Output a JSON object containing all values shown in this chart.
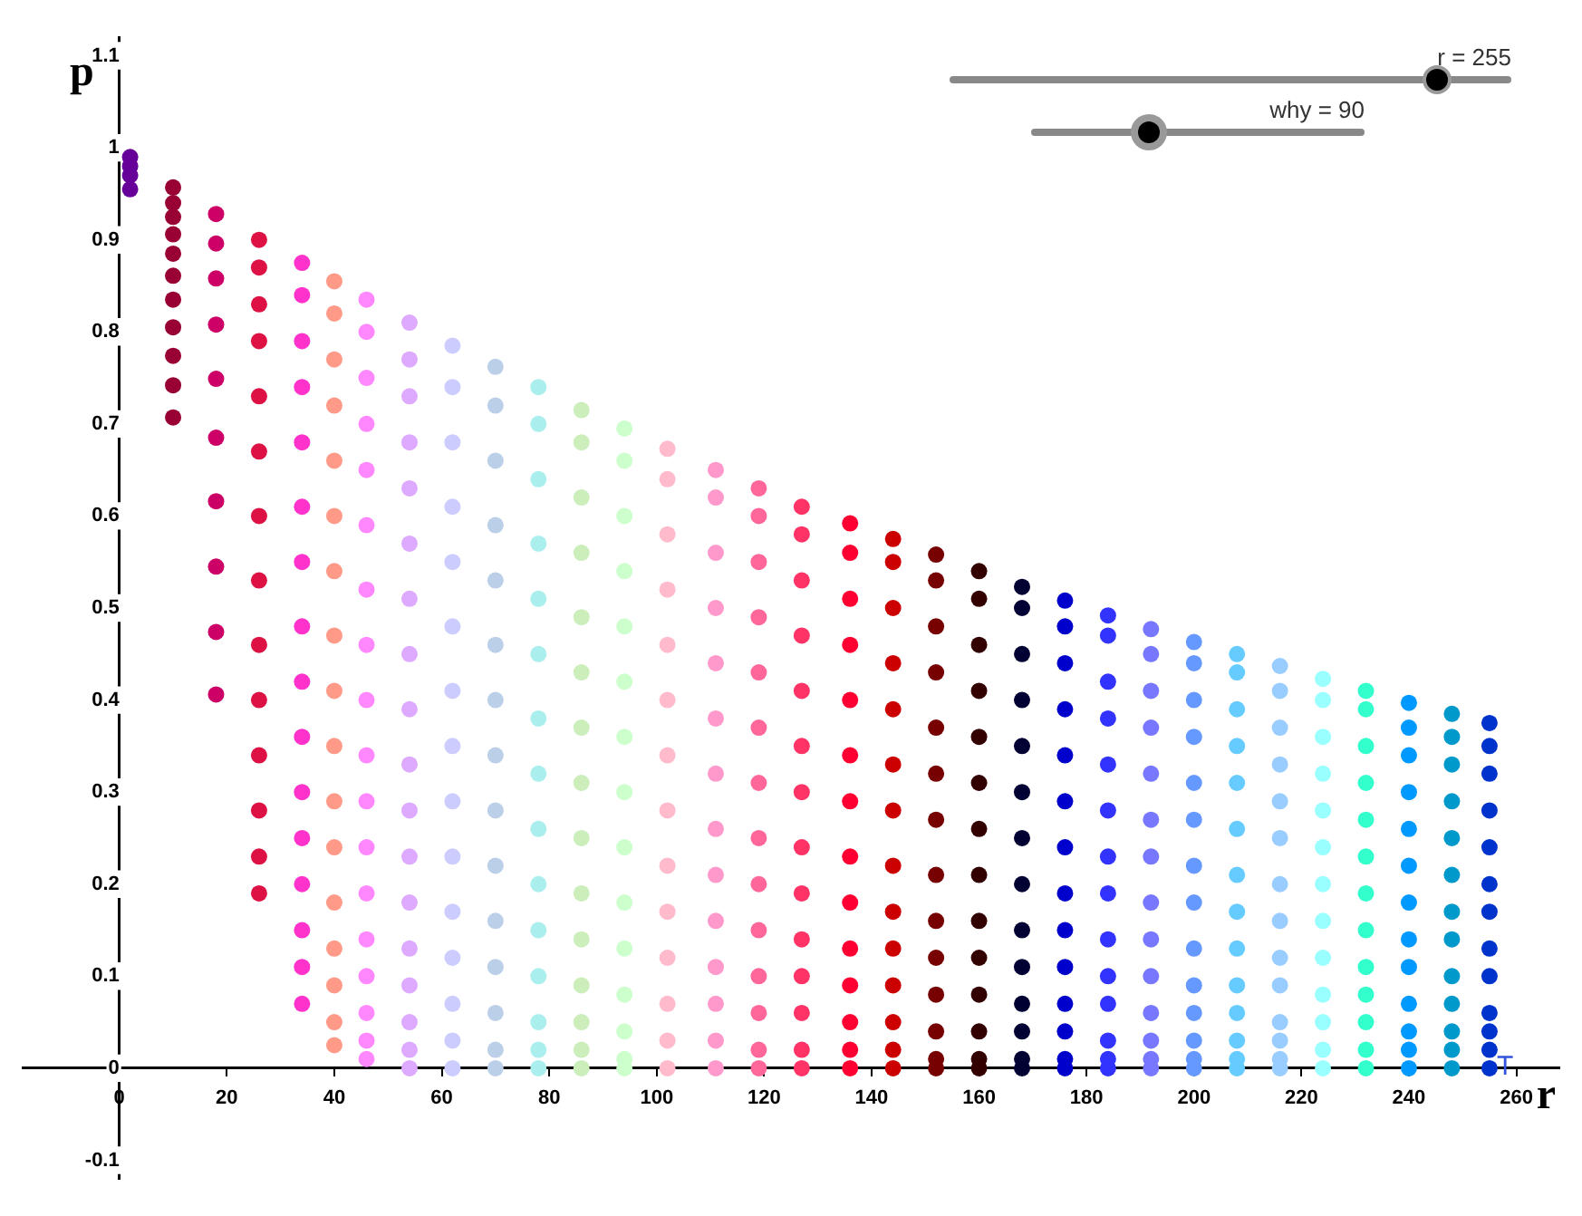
{
  "chart_data": {
    "type": "scatter",
    "xlabel": "r",
    "ylabel": "p",
    "xlim": [
      -18,
      268
    ],
    "ylim": [
      -0.12,
      1.12
    ],
    "xticks": [
      0,
      20,
      40,
      60,
      80,
      100,
      120,
      140,
      160,
      180,
      200,
      220,
      240,
      260
    ],
    "yticks": [
      -0.1,
      0,
      0.1,
      0.2,
      0.3,
      0.4,
      0.5,
      0.6,
      0.7,
      0.8,
      0.9,
      1,
      1.1
    ],
    "grid": false,
    "legend": false,
    "marker": "circle",
    "annotations": [
      "r = 255",
      "why = 90",
      "T"
    ],
    "series": [
      {
        "color": "#660099",
        "x": [
          2,
          2,
          2,
          2
        ],
        "values": [
          0.99,
          0.98,
          0.97,
          0.955
        ]
      },
      {
        "color": "#990033",
        "x": [
          10,
          10,
          10,
          10,
          10,
          10,
          10,
          10,
          10,
          10,
          10
        ],
        "values": [
          0.957,
          0.94,
          0.925,
          0.906,
          0.885,
          0.861,
          0.835,
          0.805,
          0.774,
          0.742,
          0.707
        ]
      },
      {
        "color": "#cc0066",
        "x": [
          18,
          18,
          18,
          18,
          18,
          18,
          18,
          18,
          18,
          18
        ],
        "values": [
          0.928,
          0.896,
          0.858,
          0.808,
          0.749,
          0.685,
          0.616,
          0.545,
          0.474,
          0.406
        ]
      },
      {
        "color": "#dd1144",
        "x": [
          26,
          26,
          26,
          26,
          26,
          26,
          26,
          26,
          26,
          26,
          26,
          26,
          26,
          26
        ],
        "values": [
          0.9,
          0.87,
          0.83,
          0.79,
          0.73,
          0.67,
          0.6,
          0.53,
          0.46,
          0.4,
          0.34,
          0.28,
          0.23,
          0.19
        ]
      },
      {
        "color": "#ff33cc",
        "x": [
          34,
          34,
          34,
          34,
          34,
          34,
          34,
          34,
          34,
          34,
          34,
          34,
          34,
          34,
          34,
          34
        ],
        "values": [
          0.875,
          0.84,
          0.79,
          0.74,
          0.68,
          0.61,
          0.55,
          0.48,
          0.42,
          0.36,
          0.3,
          0.25,
          0.2,
          0.15,
          0.11,
          0.07
        ]
      },
      {
        "color": "#ff9988",
        "x": [
          40,
          40,
          40,
          40,
          40,
          40,
          40,
          40,
          40,
          40,
          40,
          40,
          40,
          40,
          40,
          40,
          40
        ],
        "values": [
          0.855,
          0.82,
          0.77,
          0.72,
          0.66,
          0.6,
          0.54,
          0.47,
          0.41,
          0.35,
          0.29,
          0.24,
          0.18,
          0.13,
          0.09,
          0.05,
          0.025
        ]
      },
      {
        "color": "#ff88ff",
        "x": [
          46,
          46,
          46,
          46,
          46,
          46,
          46,
          46,
          46,
          46,
          46,
          46,
          46,
          46,
          46,
          46,
          46,
          46
        ],
        "values": [
          0.835,
          0.8,
          0.75,
          0.7,
          0.65,
          0.59,
          0.52,
          0.46,
          0.4,
          0.34,
          0.29,
          0.24,
          0.19,
          0.14,
          0.1,
          0.06,
          0.03,
          0.01
        ]
      },
      {
        "color": "#ddaaff",
        "x": [
          54,
          54,
          54,
          54,
          54,
          54,
          54,
          54,
          54,
          54,
          54,
          54,
          54,
          54,
          54,
          54,
          54,
          54
        ],
        "values": [
          0.81,
          0.77,
          0.73,
          0.68,
          0.63,
          0.57,
          0.51,
          0.45,
          0.39,
          0.33,
          0.28,
          0.23,
          0.18,
          0.13,
          0.09,
          0.05,
          0.02,
          0
        ]
      },
      {
        "color": "#ccccff",
        "x": [
          62,
          62,
          62,
          62,
          62,
          62,
          62,
          62,
          62,
          62,
          62,
          62,
          62,
          62,
          62
        ],
        "values": [
          0.785,
          0.74,
          0.68,
          0.61,
          0.55,
          0.48,
          0.41,
          0.35,
          0.29,
          0.23,
          0.17,
          0.12,
          0.07,
          0.03,
          0
        ]
      },
      {
        "color": "#bbd0e8",
        "x": [
          70,
          70,
          70,
          70,
          70,
          70,
          70,
          70,
          70,
          70,
          70,
          70,
          70,
          70,
          70
        ],
        "values": [
          0.762,
          0.72,
          0.66,
          0.59,
          0.53,
          0.46,
          0.4,
          0.34,
          0.28,
          0.22,
          0.16,
          0.11,
          0.06,
          0.02,
          0
        ]
      },
      {
        "color": "#aaeeee",
        "x": [
          78,
          78,
          78,
          78,
          78,
          78,
          78,
          78,
          78,
          78,
          78,
          78,
          78,
          78,
          78
        ],
        "values": [
          0.74,
          0.7,
          0.64,
          0.57,
          0.51,
          0.45,
          0.38,
          0.32,
          0.26,
          0.2,
          0.15,
          0.1,
          0.05,
          0.02,
          0
        ]
      },
      {
        "color": "#cceebb",
        "x": [
          86,
          86,
          86,
          86,
          86,
          86,
          86,
          86,
          86,
          86,
          86,
          86,
          86,
          86,
          86
        ],
        "values": [
          0.715,
          0.68,
          0.62,
          0.56,
          0.49,
          0.43,
          0.37,
          0.31,
          0.25,
          0.19,
          0.14,
          0.09,
          0.05,
          0.02,
          0
        ]
      },
      {
        "color": "#ccffcc",
        "x": [
          94,
          94,
          94,
          94,
          94,
          94,
          94,
          94,
          94,
          94,
          94,
          94,
          94,
          94,
          94
        ],
        "values": [
          0.695,
          0.66,
          0.6,
          0.54,
          0.48,
          0.42,
          0.36,
          0.3,
          0.24,
          0.18,
          0.13,
          0.08,
          0.04,
          0.01,
          0
        ]
      },
      {
        "color": "#ffbbcc",
        "x": [
          102,
          102,
          102,
          102,
          102,
          102,
          102,
          102,
          102,
          102,
          102,
          102,
          102,
          102
        ],
        "values": [
          0.673,
          0.64,
          0.58,
          0.52,
          0.46,
          0.4,
          0.34,
          0.28,
          0.22,
          0.17,
          0.12,
          0.07,
          0.03,
          0
        ]
      },
      {
        "color": "#ff99cc",
        "x": [
          111,
          111,
          111,
          111,
          111,
          111,
          111,
          111,
          111,
          111,
          111,
          111,
          111,
          111
        ],
        "values": [
          0.65,
          0.62,
          0.56,
          0.5,
          0.44,
          0.38,
          0.32,
          0.26,
          0.21,
          0.16,
          0.11,
          0.07,
          0.03,
          0
        ]
      },
      {
        "color": "#ff6699",
        "x": [
          119,
          119,
          119,
          119,
          119,
          119,
          119,
          119,
          119,
          119,
          119,
          119,
          119,
          119
        ],
        "values": [
          0.63,
          0.6,
          0.55,
          0.49,
          0.43,
          0.37,
          0.31,
          0.25,
          0.2,
          0.15,
          0.1,
          0.06,
          0.02,
          0
        ]
      },
      {
        "color": "#ff3366",
        "x": [
          127,
          127,
          127,
          127,
          127,
          127,
          127,
          127,
          127,
          127,
          127,
          127,
          127,
          127
        ],
        "values": [
          0.61,
          0.58,
          0.53,
          0.47,
          0.41,
          0.35,
          0.3,
          0.24,
          0.19,
          0.14,
          0.1,
          0.06,
          0.02,
          0
        ]
      },
      {
        "color": "#ff0033",
        "x": [
          136,
          136,
          136,
          136,
          136,
          136,
          136,
          136,
          136,
          136,
          136,
          136,
          136,
          136
        ],
        "values": [
          0.592,
          0.56,
          0.51,
          0.46,
          0.4,
          0.34,
          0.29,
          0.23,
          0.18,
          0.13,
          0.09,
          0.05,
          0.02,
          0
        ]
      },
      {
        "color": "#cc0000",
        "x": [
          144,
          144,
          144,
          144,
          144,
          144,
          144,
          144,
          144,
          144,
          144,
          144,
          144,
          144
        ],
        "values": [
          0.575,
          0.55,
          0.5,
          0.44,
          0.39,
          0.33,
          0.28,
          0.22,
          0.17,
          0.13,
          0.09,
          0.05,
          0.02,
          0
        ]
      },
      {
        "color": "#770000",
        "x": [
          152,
          152,
          152,
          152,
          152,
          152,
          152,
          152,
          152,
          152,
          152,
          152,
          152,
          152
        ],
        "values": [
          0.558,
          0.53,
          0.48,
          0.43,
          0.37,
          0.32,
          0.27,
          0.21,
          0.16,
          0.12,
          0.08,
          0.04,
          0.01,
          0
        ]
      },
      {
        "color": "#330000",
        "x": [
          160,
          160,
          160,
          160,
          160,
          160,
          160,
          160,
          160,
          160,
          160,
          160,
          160,
          160
        ],
        "values": [
          0.54,
          0.51,
          0.46,
          0.41,
          0.36,
          0.31,
          0.26,
          0.21,
          0.16,
          0.12,
          0.08,
          0.04,
          0.01,
          0
        ]
      },
      {
        "color": "#000033",
        "x": [
          168,
          168,
          168,
          168,
          168,
          168,
          168,
          168,
          168,
          168,
          168,
          168,
          168,
          168
        ],
        "values": [
          0.523,
          0.5,
          0.45,
          0.4,
          0.35,
          0.3,
          0.25,
          0.2,
          0.15,
          0.11,
          0.07,
          0.04,
          0.01,
          0
        ]
      },
      {
        "color": "#0000cc",
        "x": [
          176,
          176,
          176,
          176,
          176,
          176,
          176,
          176,
          176,
          176,
          176,
          176,
          176,
          176
        ],
        "values": [
          0.508,
          0.48,
          0.44,
          0.39,
          0.34,
          0.29,
          0.24,
          0.19,
          0.15,
          0.11,
          0.07,
          0.04,
          0.01,
          0
        ]
      },
      {
        "color": "#3333ff",
        "x": [
          184,
          184,
          184,
          184,
          184,
          184,
          184,
          184,
          184,
          184,
          184,
          184,
          184,
          184
        ],
        "values": [
          0.492,
          0.47,
          0.42,
          0.38,
          0.33,
          0.28,
          0.23,
          0.19,
          0.14,
          0.1,
          0.07,
          0.03,
          0.01,
          0
        ]
      },
      {
        "color": "#7777ff",
        "x": [
          192,
          192,
          192,
          192,
          192,
          192,
          192,
          192,
          192,
          192,
          192,
          192,
          192,
          192
        ],
        "values": [
          0.477,
          0.45,
          0.41,
          0.37,
          0.32,
          0.27,
          0.23,
          0.18,
          0.14,
          0.1,
          0.06,
          0.03,
          0.01,
          0
        ]
      },
      {
        "color": "#6699ff",
        "x": [
          200,
          200,
          200,
          200,
          200,
          200,
          200,
          200,
          200,
          200,
          200,
          200,
          200,
          200
        ],
        "values": [
          0.463,
          0.44,
          0.4,
          0.36,
          0.31,
          0.27,
          0.22,
          0.18,
          0.13,
          0.09,
          0.06,
          0.03,
          0.01,
          0
        ]
      },
      {
        "color": "#66ccff",
        "x": [
          208,
          208,
          208,
          208,
          208,
          208,
          208,
          208,
          208,
          208,
          208,
          208,
          208,
          208
        ],
        "values": [
          0.45,
          0.43,
          0.39,
          0.35,
          0.31,
          0.26,
          0.21,
          0.17,
          0.13,
          0.09,
          0.06,
          0.03,
          0.01,
          0
        ]
      },
      {
        "color": "#99ccff",
        "x": [
          216,
          216,
          216,
          216,
          216,
          216,
          216,
          216,
          216,
          216,
          216,
          216,
          216,
          216
        ],
        "values": [
          0.437,
          0.41,
          0.37,
          0.33,
          0.29,
          0.25,
          0.2,
          0.16,
          0.12,
          0.09,
          0.05,
          0.03,
          0.01,
          0
        ]
      },
      {
        "color": "#99ffff",
        "x": [
          224,
          224,
          224,
          224,
          224,
          224,
          224,
          224,
          224,
          224,
          224,
          224,
          224
        ],
        "values": [
          0.423,
          0.4,
          0.36,
          0.32,
          0.28,
          0.24,
          0.2,
          0.16,
          0.12,
          0.08,
          0.05,
          0.02,
          0
        ]
      },
      {
        "color": "#33ffcc",
        "x": [
          232,
          232,
          232,
          232,
          232,
          232,
          232,
          232,
          232,
          232,
          232,
          232,
          232
        ],
        "values": [
          0.41,
          0.39,
          0.35,
          0.31,
          0.27,
          0.23,
          0.19,
          0.15,
          0.11,
          0.08,
          0.05,
          0.02,
          0
        ]
      },
      {
        "color": "#0099ff",
        "x": [
          240,
          240,
          240,
          240,
          240,
          240,
          240,
          240,
          240,
          240,
          240,
          240,
          240
        ],
        "values": [
          0.397,
          0.37,
          0.34,
          0.3,
          0.26,
          0.22,
          0.18,
          0.14,
          0.11,
          0.07,
          0.04,
          0.02,
          0
        ]
      },
      {
        "color": "#0099cc",
        "x": [
          248,
          248,
          248,
          248,
          248,
          248,
          248,
          248,
          248,
          248,
          248,
          248,
          248
        ],
        "values": [
          0.385,
          0.36,
          0.33,
          0.29,
          0.25,
          0.21,
          0.17,
          0.14,
          0.1,
          0.07,
          0.04,
          0.02,
          0
        ]
      },
      {
        "color": "#0033cc",
        "x": [
          255,
          255,
          255,
          255,
          255,
          255,
          255,
          255,
          255,
          255,
          255,
          255,
          255
        ],
        "values": [
          0.375,
          0.35,
          0.32,
          0.28,
          0.24,
          0.2,
          0.17,
          0.13,
          0.1,
          0.06,
          0.04,
          0.02,
          0
        ]
      }
    ]
  }
}
